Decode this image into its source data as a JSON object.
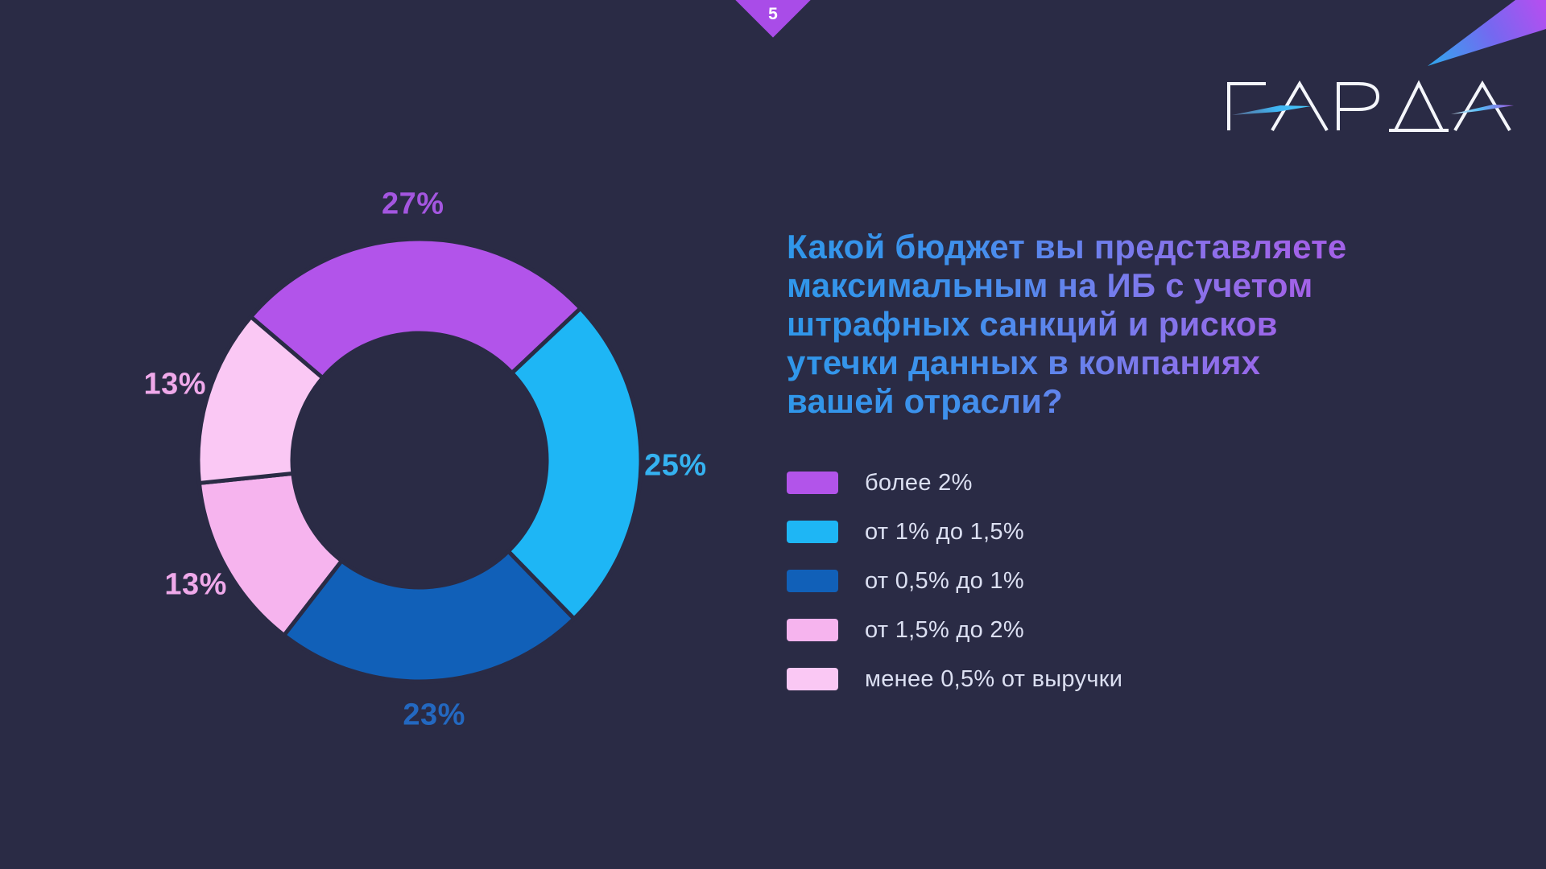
{
  "page": {
    "number": "5"
  },
  "logo": {
    "text": "ГАРДА"
  },
  "question": {
    "title": "Какой бюджет вы представляете максимальным на ИБ с учетом штрафных санкций и рисков утечки данных в компаниях вашей отрасли?",
    "title_lines": [
      "Какой бюджет вы представляете",
      "максимальным на ИБ с учетом",
      "штрафных санкций и рисков",
      "утечки данных в компаниях",
      "вашей отрасли?"
    ]
  },
  "chart_data": {
    "type": "pie",
    "donut": true,
    "units": "%",
    "start_angle_deg": -49.6,
    "legend_position": "right",
    "segments": [
      {
        "label": "более 2%",
        "value": 27,
        "color": "#b254ea",
        "label_color": "#a456e0"
      },
      {
        "label": "от 1% до 1,5%",
        "value": 25,
        "color": "#1eb6f5",
        "label_color": "#35b2f0"
      },
      {
        "label": "от 0,5% до 1%",
        "value": 23,
        "color": "#1160b8",
        "label_color": "#2368c0"
      },
      {
        "label": "от 1,5% до 2%",
        "value": 13,
        "color": "#f6b4ee",
        "label_color": "#efa9ea"
      },
      {
        "label": "менее 0,5% от выручки",
        "value": 13,
        "color": "#fac8f4",
        "label_color": "#efa9ea"
      }
    ]
  },
  "colors": {
    "background": "#2a2b45",
    "diamond": "#a94ce8",
    "legend_text": "#dce0f2",
    "title_gradient_from": "#2f97ea",
    "title_gradient_to": "#a262e8"
  }
}
